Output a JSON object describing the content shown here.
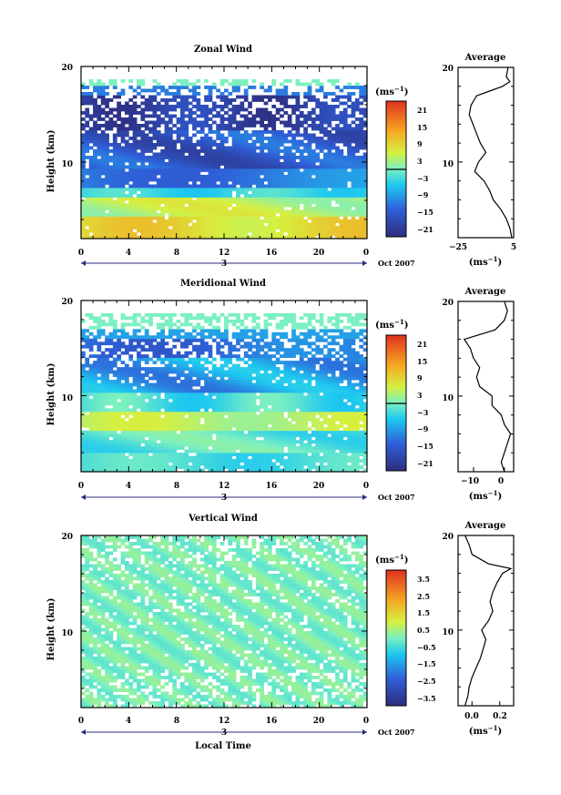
{
  "date_label": "Oct 2007",
  "day_label": "3",
  "xlabel_bottom": "Local Time",
  "chart_data": [
    {
      "type": "heatmap",
      "title": "Zonal Wind",
      "ylabel": "Height (km)",
      "xlabel": "",
      "xlim": [
        0,
        24
      ],
      "ylim": [
        2,
        20
      ],
      "xticks": [
        "0",
        "4",
        "8",
        "12",
        "16",
        "20",
        "0"
      ],
      "yticks": [
        "10",
        "20"
      ],
      "colorbar": {
        "unit": "(ms",
        "unit_exp": "−1",
        "ticks": [
          "21",
          "15",
          "9",
          "3",
          "−3",
          "−9",
          "−15",
          "−21"
        ],
        "range": [
          -24,
          24
        ]
      },
      "profile": {
        "title": "Average",
        "xlabel": "(ms",
        "xlabel_exp": "−1",
        "xlim": [
          -25,
          5
        ],
        "xticks": [
          "−25",
          "5"
        ],
        "yticks": [
          "10",
          "20"
        ],
        "height": [
          2,
          3,
          4,
          5,
          6,
          7,
          8,
          9,
          10,
          11,
          12,
          13,
          14,
          15,
          16,
          17,
          17.5,
          18,
          18.5,
          19,
          20
        ],
        "value": [
          4,
          3,
          1,
          -2,
          -6,
          -8,
          -11,
          -16,
          -14,
          -10,
          -13,
          -15,
          -17,
          -19,
          -18,
          -15,
          -8,
          -1,
          3,
          1,
          2
        ]
      }
    },
    {
      "type": "heatmap",
      "title": "Meridional Wind",
      "ylabel": "Height (km)",
      "xlabel": "",
      "xlim": [
        0,
        24
      ],
      "ylim": [
        2,
        20
      ],
      "xticks": [
        "0",
        "4",
        "8",
        "12",
        "16",
        "20",
        "0"
      ],
      "yticks": [
        "10",
        "20"
      ],
      "colorbar": {
        "unit": "(ms",
        "unit_exp": "−1",
        "ticks": [
          "21",
          "15",
          "9",
          "3",
          "−3",
          "−9",
          "−15",
          "−21"
        ],
        "range": [
          -24,
          24
        ]
      },
      "profile": {
        "title": "Average",
        "xlabel": "(ms",
        "xlabel_exp": "−1",
        "xlim": [
          -15,
          3
        ],
        "xticks": [
          "−10",
          "0"
        ],
        "yticks": [
          "10",
          "20"
        ],
        "height": [
          2,
          3,
          4,
          5,
          6,
          7,
          8,
          9,
          10,
          11,
          12,
          13,
          14,
          15,
          16,
          17,
          18,
          19,
          20
        ],
        "value": [
          0,
          -1,
          0,
          1,
          2,
          0,
          -1,
          -4,
          -4,
          -8,
          -9,
          -8,
          -10,
          -11,
          -13,
          -3,
          0,
          1,
          0
        ]
      }
    },
    {
      "type": "heatmap",
      "title": "Vertical Wind",
      "ylabel": "Height (km)",
      "xlabel": "Local Time",
      "xlim": [
        0,
        24
      ],
      "ylim": [
        2,
        20
      ],
      "xticks": [
        "0",
        "4",
        "8",
        "12",
        "16",
        "20",
        "0"
      ],
      "yticks": [
        "10",
        "20"
      ],
      "colorbar": {
        "unit": "(ms",
        "unit_exp": "−1",
        "ticks": [
          "3.5",
          "2.5",
          "1.5",
          "0.5",
          "−0.5",
          "−1.5",
          "−2.5",
          "−3.5"
        ],
        "range": [
          -4,
          4
        ]
      },
      "profile": {
        "title": "Average",
        "xlabel": "(ms",
        "xlabel_exp": "−1",
        "xlim": [
          -0.1,
          0.3
        ],
        "xticks": [
          "0.0",
          "0.2"
        ],
        "yticks": [
          "10",
          "20"
        ],
        "height": [
          2,
          3,
          4,
          5,
          6,
          7,
          8,
          9,
          10,
          11,
          12,
          13,
          14,
          15,
          16,
          16.5,
          17,
          18,
          19,
          20
        ],
        "value": [
          -0.05,
          -0.03,
          -0.02,
          0.0,
          0.03,
          0.06,
          0.08,
          0.1,
          0.07,
          0.12,
          0.15,
          0.13,
          0.15,
          0.18,
          0.22,
          0.28,
          0.12,
          0.0,
          -0.02,
          -0.05
        ]
      }
    }
  ]
}
